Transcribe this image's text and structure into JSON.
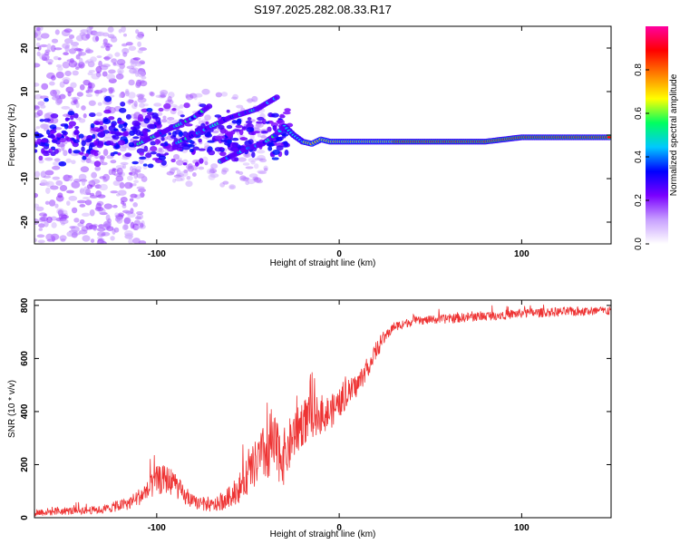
{
  "figure_title": "S197.2025.282.08.33.R17",
  "chart_data": [
    {
      "type": "heatmap",
      "title": "S197.2025.282.08.33.R17",
      "xlabel": "Height of straight line (km)",
      "ylabel": "Frequency (Hz)",
      "xlim": [
        -167,
        149
      ],
      "ylim": [
        -25,
        25
      ],
      "xticks": [
        -100,
        0,
        100
      ],
      "yticks": [
        -20,
        -10,
        0,
        10,
        20
      ],
      "xtick_labels": [
        "-100",
        "0",
        "100"
      ],
      "ytick_labels": [
        "-20",
        "-10",
        "0",
        "10",
        "20"
      ],
      "colorbar": {
        "label": "Normalized spectral amplitude",
        "range": [
          0,
          1
        ],
        "ticks": [
          0,
          0.2,
          0.4,
          0.6,
          0.8
        ],
        "tick_labels": [
          "0.0",
          "0.2",
          "0.4",
          "0.6",
          "0.8"
        ],
        "colors": [
          "#ffffff",
          "#c8a0ff",
          "#7a00ff",
          "#0000ff",
          "#00c8ff",
          "#00ff60",
          "#ffff00",
          "#ff8000",
          "#ff0000",
          "#ff00a0"
        ]
      },
      "ridges": [
        {
          "name": "main-trace",
          "points": [
            [
              -30,
              2
            ],
            [
              -25,
              0
            ],
            [
              -20,
              -1.5
            ],
            [
              -15,
              -2
            ],
            [
              -10,
              -1
            ],
            [
              -5,
              -1.5
            ],
            [
              0,
              -1.5
            ],
            [
              20,
              -1.5
            ],
            [
              40,
              -1.5
            ],
            [
              60,
              -1.5
            ],
            [
              80,
              -1.5
            ],
            [
              100,
              -0.5
            ],
            [
              120,
              -0.5
            ],
            [
              149,
              -0.5
            ]
          ]
        },
        {
          "name": "upper-branch",
          "points": [
            [
              -110,
              -2
            ],
            [
              -100,
              0
            ],
            [
              -90,
              2
            ],
            [
              -80,
              4
            ],
            [
              -70,
              7
            ]
          ]
        },
        {
          "name": "middle-branch",
          "points": [
            [
              -90,
              -2
            ],
            [
              -80,
              0
            ],
            [
              -70,
              2
            ],
            [
              -60,
              4
            ],
            [
              -45,
              6
            ],
            [
              -33,
              9
            ]
          ]
        },
        {
          "name": "lower-branch",
          "points": [
            [
              -65,
              -6
            ],
            [
              -55,
              -4
            ],
            [
              -50,
              -3
            ],
            [
              -42,
              -2
            ],
            [
              -35,
              0
            ],
            [
              -30,
              2
            ]
          ]
        }
      ]
    },
    {
      "type": "line",
      "title": "",
      "xlabel": "Height of straight line (km)",
      "ylabel": "SNR (10 * v/v)",
      "xlim": [
        -167,
        149
      ],
      "ylim": [
        0,
        820
      ],
      "xticks": [
        -100,
        0,
        100
      ],
      "yticks": [
        0,
        200,
        400,
        600,
        800
      ],
      "xtick_labels": [
        "-100",
        "0",
        "100"
      ],
      "ytick_labels": [
        "0",
        "200",
        "400",
        "600",
        "800"
      ],
      "series": [
        {
          "name": "SNR",
          "color": "#ee3333",
          "x": [
            -167,
            -150,
            -130,
            -115,
            -105,
            -100,
            -95,
            -90,
            -85,
            -80,
            -75,
            -70,
            -65,
            -60,
            -55,
            -50,
            -45,
            -40,
            -35,
            -30,
            -25,
            -20,
            -15,
            -10,
            -5,
            0,
            5,
            10,
            15,
            20,
            25,
            30,
            40,
            50,
            60,
            80,
            100,
            120,
            149
          ],
          "y": [
            20,
            25,
            30,
            55,
            100,
            140,
            145,
            130,
            80,
            60,
            50,
            45,
            55,
            80,
            110,
            160,
            210,
            250,
            260,
            230,
            310,
            360,
            380,
            390,
            395,
            430,
            470,
            500,
            560,
            620,
            680,
            720,
            740,
            745,
            750,
            760,
            770,
            775,
            780
          ],
          "noise": [
            15,
            15,
            15,
            25,
            40,
            55,
            55,
            50,
            35,
            25,
            25,
            25,
            30,
            40,
            55,
            70,
            95,
            115,
            120,
            110,
            95,
            90,
            80,
            75,
            65,
            55,
            50,
            45,
            40,
            30,
            22,
            18,
            16,
            16,
            18,
            18,
            18,
            18,
            18
          ]
        }
      ]
    }
  ]
}
